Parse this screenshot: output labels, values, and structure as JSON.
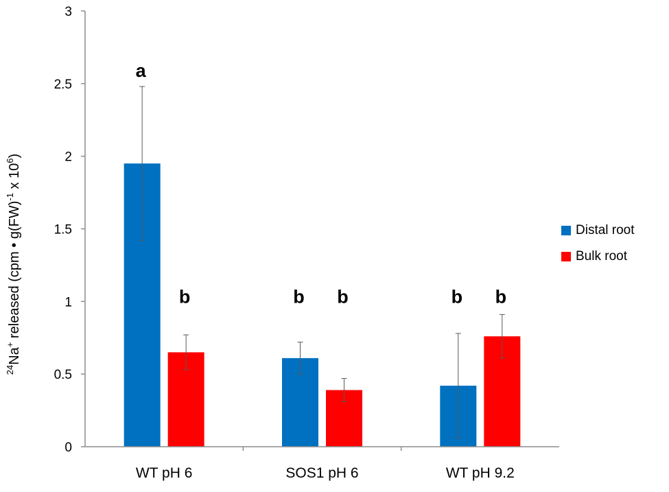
{
  "chart_data": {
    "type": "bar",
    "title": "",
    "xlabel": "",
    "ylabel": {
      "sup1": "24",
      "part1": "Na",
      "sup2": "+",
      "part2": " released (cpm • g(FW)",
      "sup3": "-1",
      "part3": " x 10",
      "sup4": "6",
      "part4": ")"
    },
    "ylim": [
      0,
      3
    ],
    "yticks": [
      "0",
      "0.5",
      "1",
      "1.5",
      "2",
      "2.5",
      "3"
    ],
    "categories": [
      "WT pH 6",
      "SOS1 pH 6",
      "WT pH 9.2"
    ],
    "series": [
      {
        "name": "Distal root",
        "color": "#0070C0",
        "values": [
          1.95,
          0.61,
          0.42
        ],
        "errors": [
          0.53,
          0.11,
          0.36
        ],
        "labels": [
          "a",
          "b",
          "b"
        ]
      },
      {
        "name": "Bulk root",
        "color": "#FF0000",
        "values": [
          0.65,
          0.39,
          0.76
        ],
        "errors": [
          0.12,
          0.08,
          0.15
        ],
        "labels": [
          "b",
          "b",
          "b"
        ]
      }
    ],
    "legend_position": "right"
  }
}
